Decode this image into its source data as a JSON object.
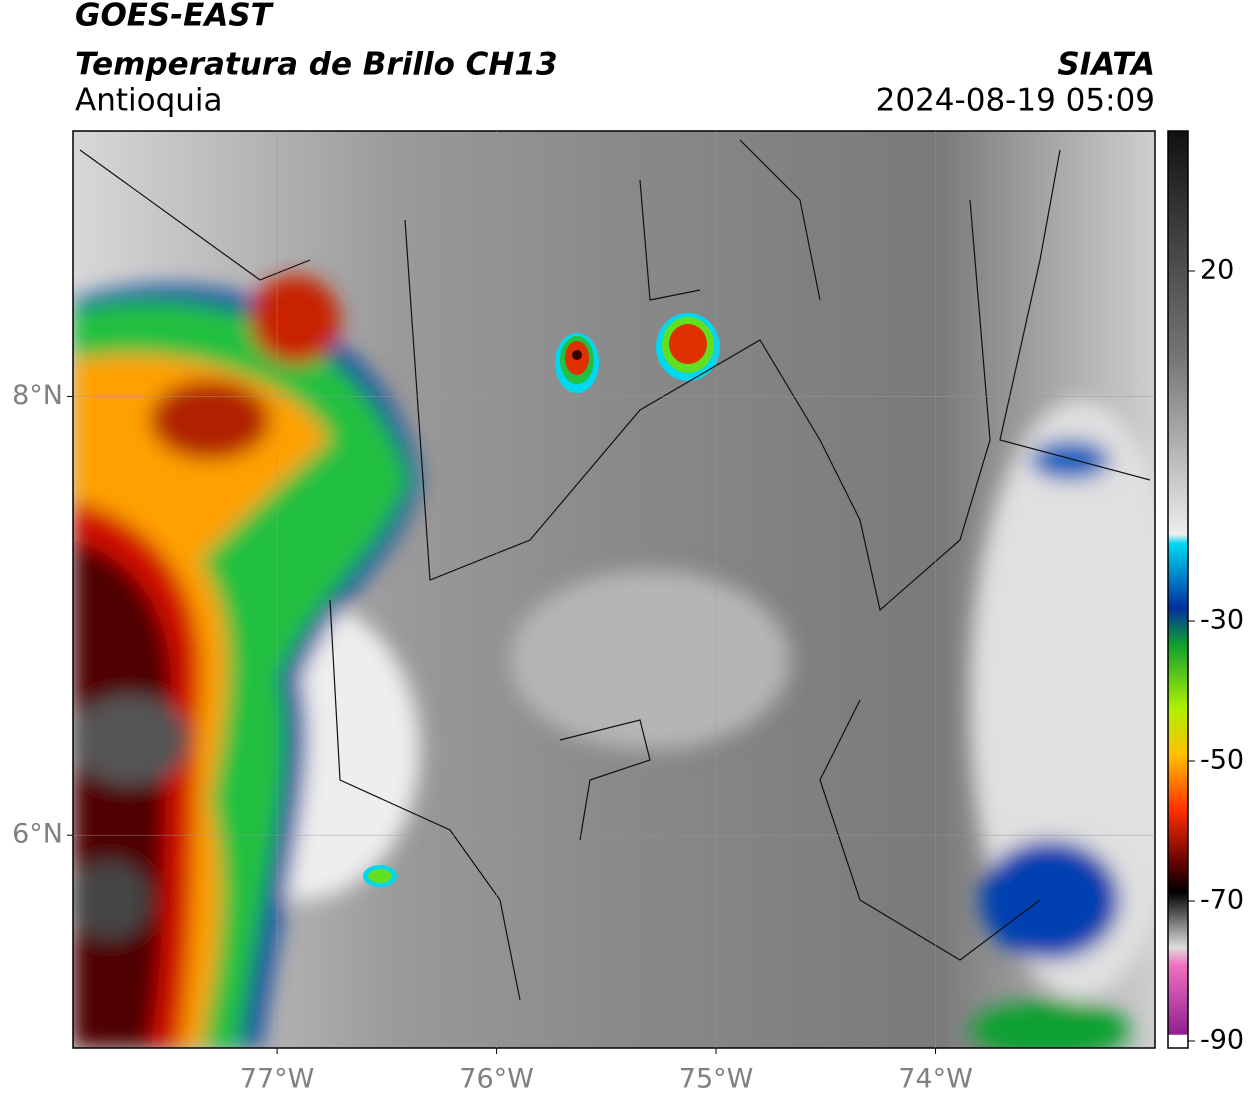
{
  "header": {
    "title": "GOES-EAST",
    "product": "Temperatura de Brillo CH13",
    "region": "Antioquia",
    "agency": "SIATA",
    "datetime": "2024-08-19 05:09"
  },
  "map": {
    "lonlim": [
      -77.93,
      -73.0
    ],
    "latlim": [
      5.03,
      9.21
    ],
    "lon_ticks": [
      {
        "value": -77,
        "label": "77°W"
      },
      {
        "value": -76,
        "label": "76°W"
      },
      {
        "value": -75,
        "label": "75°W"
      },
      {
        "value": -74,
        "label": "74°W"
      }
    ],
    "lat_ticks": [
      {
        "value": 8,
        "label": "8°N"
      },
      {
        "value": 6,
        "label": "6°N"
      }
    ]
  },
  "colorbar": {
    "lim": [
      -91,
      40
    ],
    "ticks": [
      20,
      -30,
      -50,
      -70,
      -90
    ]
  }
}
